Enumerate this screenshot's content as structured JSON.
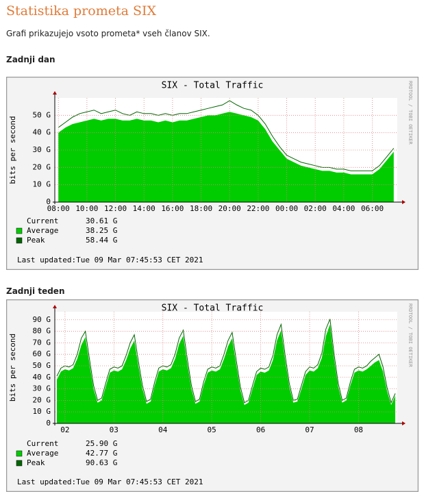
{
  "heading": "Statistika prometa SIX",
  "intro": "Grafi prikazujejo vsoto prometa* vseh članov SIX.",
  "chart_data": [
    {
      "type": "area",
      "section": "Zadnji dan",
      "title": "SIX - Total Traffic",
      "y_label": "bits per second",
      "watermark": "RRDTOOL / TOBI OETIKER",
      "categories": [
        "08:00",
        null,
        null,
        null,
        "10:00",
        null,
        null,
        null,
        "12:00",
        null,
        null,
        null,
        "14:00",
        null,
        null,
        null,
        "16:00",
        null,
        null,
        null,
        "18:00",
        null,
        null,
        null,
        "20:00",
        null,
        null,
        null,
        "22:00",
        null,
        null,
        null,
        "00:00",
        null,
        null,
        null,
        "02:00",
        null,
        null,
        null,
        "04:00",
        null,
        null,
        null,
        "06:00",
        null,
        null,
        null
      ],
      "series": [
        {
          "name": "Average",
          "color": "#00cc00",
          "summary": "38.25 G",
          "values": [
            40,
            43,
            45,
            46,
            47,
            48,
            47,
            48,
            48,
            47,
            47,
            48,
            47,
            47,
            46,
            47,
            46,
            47,
            47,
            48,
            49,
            50,
            50,
            51,
            52,
            51,
            50,
            49,
            47,
            42,
            35,
            30,
            25,
            23,
            21,
            20,
            19,
            18,
            18,
            17,
            17,
            16,
            16,
            16,
            16,
            19,
            24,
            29
          ]
        },
        {
          "name": "Peak",
          "color": "#006600",
          "summary": "58.44 G",
          "values": [
            43,
            46,
            49,
            51,
            52,
            53,
            51,
            52,
            53,
            51,
            50,
            52,
            51,
            51,
            50,
            51,
            50,
            51,
            51,
            52,
            53,
            54,
            55,
            56,
            58.44,
            56,
            54,
            53,
            50,
            45,
            38,
            32,
            27,
            25,
            23,
            22,
            21,
            20,
            20,
            19,
            19,
            18,
            18,
            18,
            18,
            21,
            26,
            31
          ]
        }
      ],
      "current": {
        "label": "Current",
        "value": "30.61 G"
      },
      "footer": "Last updated:Tue 09 Mar 07:45:53 CET 2021",
      "ylim": [
        0,
        60
      ],
      "yticks": [
        0,
        {
          "value": 10,
          "label": "10 G"
        },
        {
          "value": 20,
          "label": "20 G"
        },
        {
          "value": 30,
          "label": "30 G"
        },
        {
          "value": 40,
          "label": "40 G"
        },
        {
          "value": 50,
          "label": "50 G"
        }
      ],
      "grid": true
    },
    {
      "type": "area",
      "section": "Zadnji teden",
      "title": "SIX - Total Traffic",
      "y_label": "bits per second",
      "watermark": "RRDTOOL / TOBI OETIKER",
      "categories": [
        null,
        null,
        "02",
        null,
        null,
        null,
        null,
        null,
        null,
        null,
        null,
        null,
        null,
        null,
        "03",
        null,
        null,
        null,
        null,
        null,
        null,
        null,
        null,
        null,
        null,
        null,
        "04",
        null,
        null,
        null,
        null,
        null,
        null,
        null,
        null,
        null,
        null,
        null,
        "05",
        null,
        null,
        null,
        null,
        null,
        null,
        null,
        null,
        null,
        null,
        null,
        "06",
        null,
        null,
        null,
        null,
        null,
        null,
        null,
        null,
        null,
        null,
        null,
        "07",
        null,
        null,
        null,
        null,
        null,
        null,
        null,
        null,
        null,
        null,
        null,
        "08",
        null,
        null,
        null,
        null,
        null,
        null,
        null,
        null,
        null
      ],
      "series": [
        {
          "name": "Average",
          "color": "#00cc00",
          "summary": "42.77 G",
          "values": [
            38,
            45,
            47,
            46,
            48,
            56,
            68,
            75,
            52,
            30,
            18,
            20,
            32,
            44,
            46,
            45,
            47,
            55,
            65,
            72,
            50,
            30,
            17,
            19,
            33,
            45,
            47,
            46,
            48,
            56,
            69,
            76,
            52,
            30,
            17,
            19,
            33,
            44,
            46,
            45,
            47,
            56,
            67,
            74,
            51,
            29,
            16,
            18,
            30,
            42,
            45,
            44,
            46,
            55,
            72,
            81,
            55,
            32,
            18,
            19,
            30,
            42,
            46,
            45,
            48,
            57,
            76,
            86,
            56,
            32,
            18,
            20,
            33,
            44,
            46,
            45,
            47,
            50,
            53,
            55,
            45,
            28,
            16,
            24
          ]
        },
        {
          "name": "Peak",
          "color": "#006600",
          "summary": "90.63 G",
          "values": [
            41,
            48,
            50,
            49,
            51,
            60,
            74,
            80,
            56,
            33,
            20,
            22,
            35,
            47,
            49,
            48,
            50,
            59,
            70,
            77,
            54,
            33,
            19,
            21,
            36,
            48,
            50,
            49,
            51,
            60,
            74,
            81,
            56,
            33,
            19,
            21,
            36,
            47,
            49,
            48,
            50,
            60,
            72,
            79,
            55,
            32,
            18,
            20,
            33,
            45,
            48,
            47,
            49,
            59,
            77,
            86,
            59,
            35,
            20,
            21,
            33,
            45,
            49,
            48,
            51,
            61,
            82,
            90.63,
            60,
            35,
            20,
            22,
            36,
            47,
            49,
            48,
            50,
            54,
            57,
            60,
            49,
            31,
            18,
            26
          ]
        }
      ],
      "current": {
        "label": "Current",
        "value": "25.90 G"
      },
      "footer": "Last updated:Tue 09 Mar 07:45:53 CET 2021",
      "ylim": [
        0,
        97
      ],
      "yticks": [
        0,
        {
          "value": 10,
          "label": "10 G"
        },
        {
          "value": 20,
          "label": "20 G"
        },
        {
          "value": 30,
          "label": "30 G"
        },
        {
          "value": 40,
          "label": "40 G"
        },
        {
          "value": 50,
          "label": "50 G"
        },
        {
          "value": 60,
          "label": "60 G"
        },
        {
          "value": 70,
          "label": "70 G"
        },
        {
          "value": 80,
          "label": "80 G"
        },
        {
          "value": 90,
          "label": "90 G"
        }
      ],
      "grid": true
    }
  ]
}
